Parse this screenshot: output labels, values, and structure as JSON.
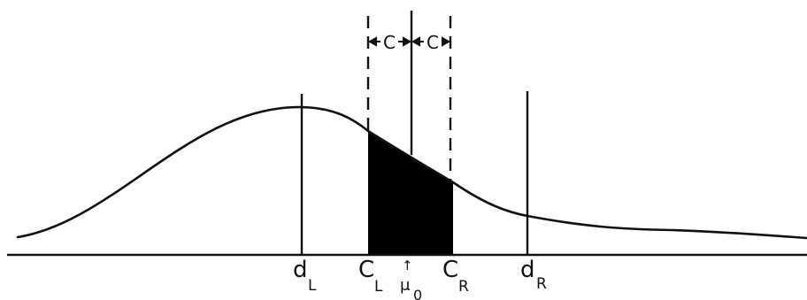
{
  "diagram": {
    "labels": {
      "d_left_main": "d",
      "d_left_sub": "L",
      "c_left_main": "C",
      "c_left_sub": "L",
      "mu_arrow": "↑",
      "mu_main": "μ",
      "mu_sub": "0",
      "c_right_main": "C",
      "c_right_sub": "R",
      "d_right_main": "d",
      "d_right_sub": "R",
      "c_width_left": "C",
      "c_width_right": "C"
    },
    "colors": {
      "ink": "#111111",
      "background": "#ffffff",
      "shaded_region": "#000000"
    }
  }
}
